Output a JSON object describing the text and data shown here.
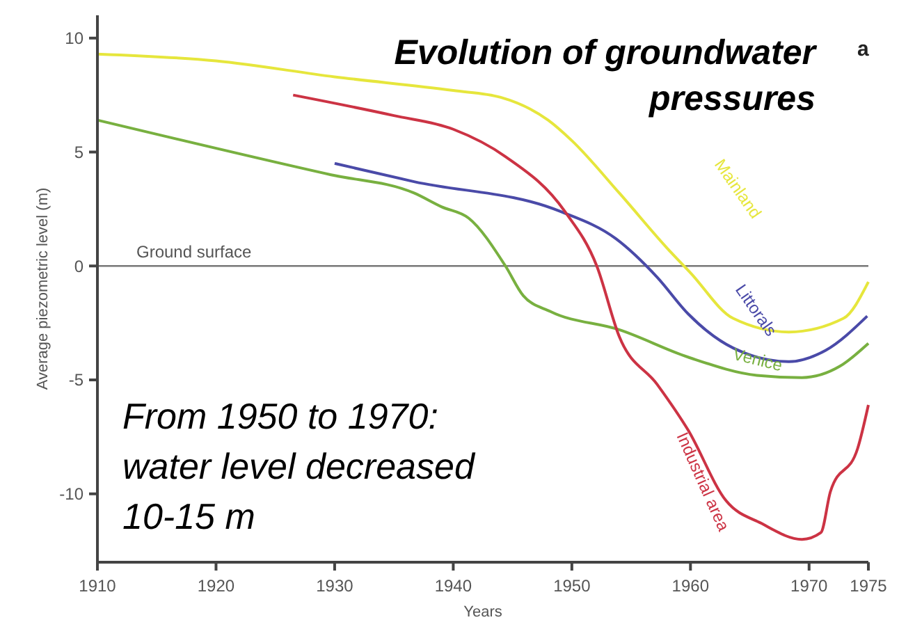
{
  "chart_data": {
    "type": "line",
    "title": "Evolution of groundwater pressures",
    "xlabel": "Years",
    "ylabel": "Average piezometric level (m)",
    "xlim": [
      1910,
      1975
    ],
    "xticks": [
      1910,
      1920,
      1930,
      1940,
      1950,
      1960,
      1970,
      1975
    ],
    "ylim": [
      -13,
      11
    ],
    "yticks": [
      -10,
      -5,
      0,
      5,
      10
    ],
    "grid": false,
    "legend": false,
    "marker": "none",
    "line_style": "solid",
    "ref_lines": [
      {
        "axis": "y",
        "value": 0,
        "label": "Ground surface",
        "color": "#777777"
      }
    ],
    "annotations": [
      "a",
      "From 1950 to 1970: water level decreased 10-15 m"
    ],
    "series": [
      {
        "name": "Mainland",
        "color": "#e6e63c",
        "x": [
          1910,
          1920,
          1930,
          1940,
          1944,
          1948,
          1950,
          1954,
          1958,
          1960,
          1963.6,
          1968.3,
          1972.9,
          1975
        ],
        "values": [
          9.3,
          9.0,
          8.3,
          7.7,
          7.4,
          6.4,
          5.5,
          3.2,
          0.8,
          -0.3,
          -2.3,
          -2.9,
          -2.3,
          -0.7
        ]
      },
      {
        "name": "Littorals",
        "color": "#4a4aa8",
        "x": [
          1930,
          1936.7,
          1949,
          1953.7,
          1957.2,
          1959.8,
          1963.6,
          1968.3,
          1971.4,
          1974.9
        ],
        "values": [
          4.5,
          3.7,
          2.4,
          1.2,
          -0.5,
          -2.1,
          -3.6,
          -4.2,
          -3.7,
          -2.2
        ]
      },
      {
        "name": "Venice",
        "color": "#78b040",
        "x": [
          1910,
          1929.7,
          1936.7,
          1939,
          1941.3,
          1944.4,
          1945.9,
          1948.2,
          1954,
          1959.8,
          1965.6,
          1969.4,
          1972.6,
          1975
        ],
        "values": [
          6.4,
          4.0,
          3.2,
          2.6,
          2.1,
          0.0,
          -1.3,
          -2.0,
          -2.8,
          -4.0,
          -4.8,
          -4.9,
          -4.4,
          -3.4
        ]
      },
      {
        "name": "Industrial area",
        "color": "#cc3344",
        "x": [
          1926.5,
          1935,
          1940,
          1944.4,
          1949.4,
          1952.1,
          1954,
          1957.2,
          1959.8,
          1963,
          1966,
          1969.4,
          1971,
          1971.8,
          1974.1,
          1975
        ],
        "values": [
          7.5,
          6.6,
          6.0,
          4.8,
          2.4,
          0.0,
          -3.1,
          -5.2,
          -7.2,
          -10.3,
          -11.3,
          -12.0,
          -11.7,
          -9.9,
          -8.0,
          -6.1
        ]
      }
    ]
  }
}
